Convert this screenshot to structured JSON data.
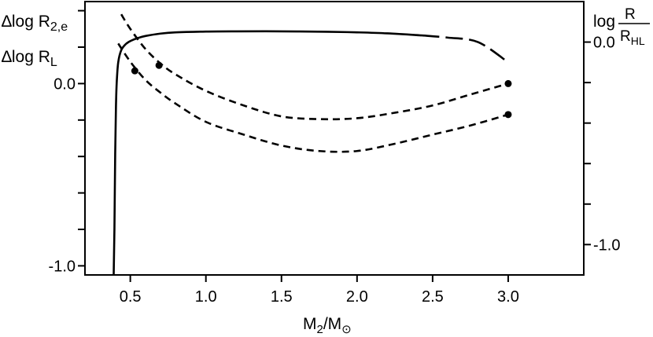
{
  "chart_data": {
    "type": "line",
    "xlabel": {
      "main": "M",
      "sub2": "2",
      "slash": "/M",
      "sub_sun": "⊙"
    },
    "ylabel_left": {
      "line1": {
        "delta": "∆log R",
        "sub": "2,e"
      },
      "line2": {
        "delta": "∆log R",
        "sub": "L"
      }
    },
    "ylabel_right": {
      "prefix": "log",
      "num": "R",
      "den_main": "R",
      "den_sub": "HL"
    },
    "xlim": [
      0.2,
      3.5
    ],
    "ylim_left": [
      -1.05,
      0.45
    ],
    "ylim_right": [
      -1.15,
      0.2
    ],
    "x_ticks": [
      {
        "value": 0.5,
        "label": "0.5"
      },
      {
        "value": 1.0,
        "label": "1.0"
      },
      {
        "value": 1.5,
        "label": "1.5"
      },
      {
        "value": 2.0,
        "label": "2.0"
      },
      {
        "value": 2.5,
        "label": "2.5"
      },
      {
        "value": 3.0,
        "label": "3.0"
      }
    ],
    "left_ticks": [
      0.4,
      0.2,
      0.0,
      -0.2,
      -0.4,
      -0.6,
      -0.8,
      -1.0
    ],
    "left_tick_labels": [
      {
        "value": 0.0,
        "label": "0.0"
      },
      {
        "value": -1.0,
        "label": "-1.0"
      }
    ],
    "right_ticks": [
      0.0,
      -0.2,
      -0.4,
      -0.6,
      -0.8,
      -1.0
    ],
    "right_tick_labels": [
      {
        "value": 0.0,
        "label": "0.0"
      },
      {
        "value": -1.0,
        "label": "-1.0"
      }
    ],
    "series": [
      {
        "axis": "right",
        "style": "solid",
        "x": [
          0.39,
          0.395,
          0.4,
          0.405,
          0.41,
          0.42,
          0.44,
          0.47,
          0.5,
          0.55,
          0.6,
          0.7,
          0.8,
          1.0,
          1.2,
          1.5,
          1.8,
          2.0,
          2.2,
          2.43
        ],
        "y": [
          -1.15,
          -0.92,
          -0.55,
          -0.32,
          -0.2,
          -0.1,
          -0.04,
          -0.01,
          0.005,
          0.02,
          0.03,
          0.042,
          0.048,
          0.052,
          0.053,
          0.053,
          0.051,
          0.048,
          0.043,
          0.033
        ]
      },
      {
        "axis": "right",
        "style": "longdash",
        "x": [
          2.43,
          2.6,
          2.8,
          3.0
        ],
        "y": [
          0.033,
          0.022,
          0.0,
          -0.1
        ]
      },
      {
        "axis": "left",
        "style": "dashed",
        "x": [
          0.44,
          0.5,
          0.6,
          0.7,
          0.8,
          1.0,
          1.25,
          1.5,
          1.75,
          2.0,
          2.25,
          2.5,
          2.75,
          3.0
        ],
        "y": [
          0.38,
          0.3,
          0.19,
          0.11,
          0.05,
          -0.04,
          -0.12,
          -0.18,
          -0.195,
          -0.19,
          -0.16,
          -0.12,
          -0.06,
          0.0
        ]
      },
      {
        "axis": "left",
        "style": "dashed",
        "x": [
          0.42,
          0.5,
          0.6,
          0.7,
          0.8,
          1.0,
          1.25,
          1.5,
          1.75,
          2.0,
          2.25,
          2.5,
          2.75,
          3.0
        ],
        "y": [
          0.22,
          0.12,
          0.02,
          -0.05,
          -0.11,
          -0.21,
          -0.28,
          -0.34,
          -0.37,
          -0.37,
          -0.33,
          -0.28,
          -0.23,
          -0.17
        ]
      }
    ],
    "points": [
      {
        "x": 0.53,
        "y": 0.07,
        "axis": "left"
      },
      {
        "x": 0.69,
        "y": 0.1,
        "axis": "left"
      },
      {
        "x": 3.0,
        "y": 0.0,
        "axis": "left"
      },
      {
        "x": 3.0,
        "y": -0.17,
        "axis": "left"
      }
    ]
  }
}
